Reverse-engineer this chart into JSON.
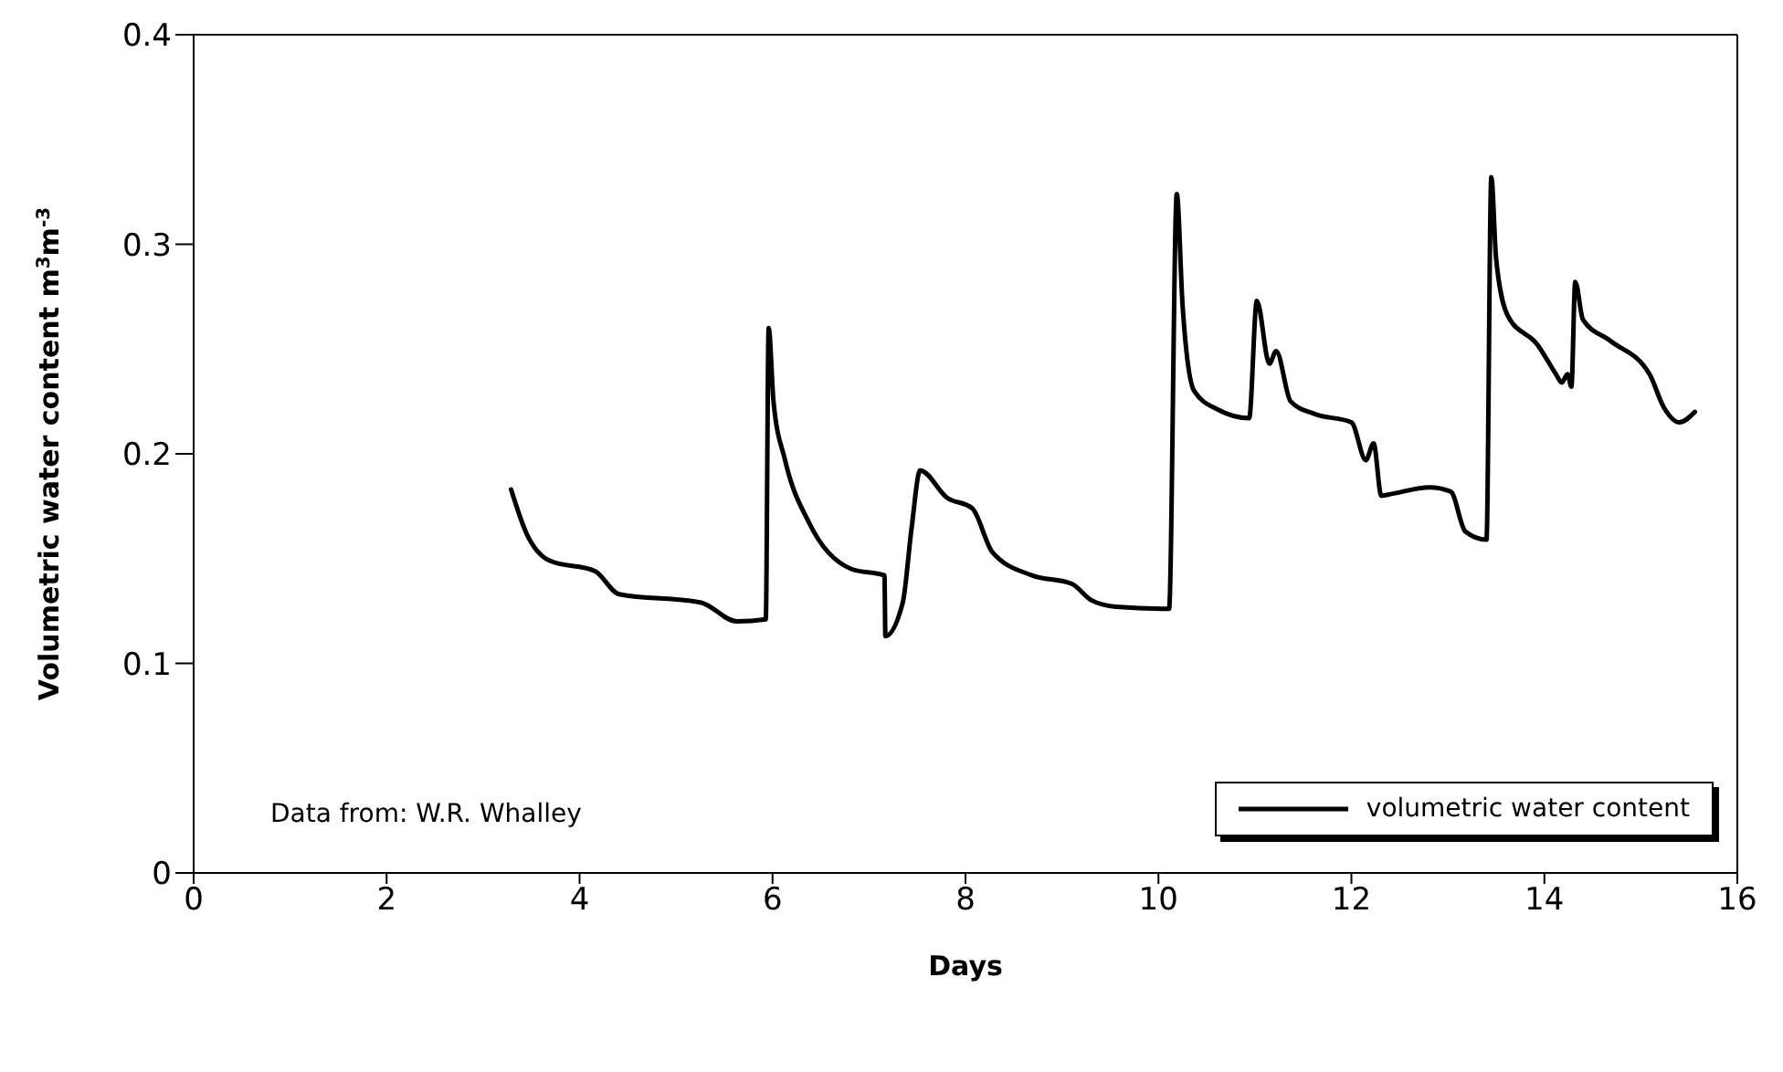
{
  "chart_data": {
    "type": "line",
    "xlabel": "Days",
    "ylabel": "Volumetric water content m$^{3}$m$^{-3}$",
    "xlim": [
      0,
      16
    ],
    "xticks": [
      0,
      2,
      4,
      6,
      8,
      10,
      12,
      14,
      16
    ],
    "ylim": [
      0,
      0.4
    ],
    "yticks": [
      0,
      0.1,
      0.2,
      0.3,
      0.4
    ],
    "grid": false,
    "legend": "bottom right",
    "marker": "none",
    "line_style": "solid",
    "annotations": [
      "Data from: W.R. Whalley"
    ],
    "series": [
      {
        "name": "volumetric water content",
        "color": "#000000",
        "x": [
          3.29,
          3.45,
          3.69,
          4.16,
          4.41,
          5.26,
          5.63,
          5.93,
          5.96,
          6.01,
          6.13,
          6.38,
          6.82,
          7.16,
          7.17,
          7.35,
          7.44,
          7.53,
          7.81,
          8.07,
          8.28,
          8.69,
          9.1,
          9.31,
          9.56,
          10.11,
          10.19,
          10.25,
          10.37,
          10.62,
          10.94,
          11.02,
          11.15,
          11.22,
          11.37,
          11.62,
          12.0,
          12.15,
          12.23,
          12.31,
          12.43,
          12.81,
          13.03,
          13.18,
          13.4,
          13.45,
          13.5,
          13.62,
          13.93,
          14.12,
          14.18,
          14.24,
          14.28,
          14.32,
          14.4,
          14.68,
          15.09,
          15.24,
          15.4,
          15.56
        ],
        "values": [
          0.183,
          0.162,
          0.149,
          0.144,
          0.133,
          0.129,
          0.12,
          0.121,
          0.26,
          0.225,
          0.197,
          0.167,
          0.145,
          0.142,
          0.113,
          0.129,
          0.164,
          0.192,
          0.179,
          0.174,
          0.153,
          0.142,
          0.138,
          0.13,
          0.127,
          0.126,
          0.324,
          0.271,
          0.23,
          0.221,
          0.217,
          0.273,
          0.243,
          0.249,
          0.225,
          0.219,
          0.215,
          0.197,
          0.205,
          0.18,
          0.181,
          0.184,
          0.182,
          0.163,
          0.159,
          0.332,
          0.293,
          0.266,
          0.252,
          0.238,
          0.234,
          0.238,
          0.232,
          0.282,
          0.264,
          0.254,
          0.238,
          0.222,
          0.215,
          0.22
        ]
      }
    ]
  }
}
